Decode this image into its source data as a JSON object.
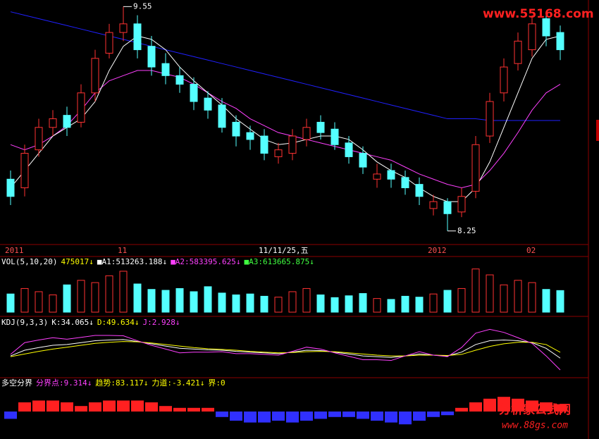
{
  "chart_data": [
    {
      "type": "candlestick",
      "categories": [
        "2011",
        null,
        null,
        null,
        null,
        null,
        null,
        null,
        "11",
        null,
        null,
        null,
        null,
        null,
        null,
        null,
        null,
        null,
        "11/11/25,五",
        null,
        null,
        null,
        null,
        null,
        null,
        null,
        null,
        null,
        null,
        null,
        "2012",
        null,
        null,
        null,
        null,
        null,
        null,
        "02",
        null,
        null
      ],
      "open": [
        8.55,
        8.5,
        8.72,
        8.85,
        8.92,
        8.88,
        9.05,
        9.28,
        9.4,
        9.45,
        9.32,
        9.22,
        9.15,
        9.1,
        9.02,
        8.98,
        8.88,
        8.82,
        8.8,
        8.68,
        8.7,
        8.78,
        8.88,
        8.84,
        8.76,
        8.7,
        8.55,
        8.6,
        8.56,
        8.52,
        8.38,
        8.42,
        8.36,
        8.48,
        8.8,
        9.05,
        9.22,
        9.3,
        9.48,
        9.4
      ],
      "high": [
        8.6,
        8.75,
        8.9,
        8.95,
        8.97,
        9.1,
        9.3,
        9.45,
        9.55,
        9.5,
        9.38,
        9.28,
        9.2,
        9.14,
        9.06,
        9.02,
        8.92,
        8.86,
        8.84,
        8.76,
        8.84,
        8.9,
        8.92,
        8.88,
        8.8,
        8.74,
        8.64,
        8.64,
        8.6,
        8.56,
        8.46,
        8.44,
        8.5,
        8.8,
        9.05,
        9.25,
        9.4,
        9.5,
        9.52,
        9.44
      ],
      "low": [
        8.4,
        8.45,
        8.68,
        8.8,
        8.8,
        8.85,
        9.0,
        9.25,
        9.35,
        9.25,
        9.15,
        9.1,
        9.05,
        8.95,
        8.9,
        8.82,
        8.74,
        8.72,
        8.66,
        8.64,
        8.66,
        8.74,
        8.78,
        8.72,
        8.64,
        8.58,
        8.5,
        8.5,
        8.46,
        8.4,
        8.34,
        8.25,
        8.33,
        8.44,
        8.76,
        9.0,
        9.18,
        9.26,
        9.32,
        9.24
      ],
      "close": [
        8.45,
        8.7,
        8.85,
        8.9,
        8.85,
        9.05,
        9.25,
        9.4,
        9.45,
        9.3,
        9.2,
        9.15,
        9.1,
        9.0,
        8.95,
        8.85,
        8.8,
        8.78,
        8.7,
        8.72,
        8.8,
        8.85,
        8.82,
        8.75,
        8.68,
        8.62,
        8.58,
        8.55,
        8.5,
        8.45,
        8.42,
        8.35,
        8.45,
        8.75,
        9.0,
        9.2,
        9.35,
        9.45,
        9.38,
        9.3
      ],
      "up_color": "#ff3232",
      "down_color": "#54ffff",
      "series": [
        {
          "color": "#2020ff",
          "values": [
            9.52,
            9.5,
            9.48,
            9.46,
            9.44,
            9.42,
            9.4,
            9.38,
            9.36,
            9.34,
            9.32,
            9.3,
            9.28,
            9.26,
            9.24,
            9.22,
            9.2,
            9.18,
            9.16,
            9.14,
            9.12,
            9.1,
            9.08,
            9.06,
            9.04,
            9.02,
            9.0,
            8.98,
            8.96,
            8.94,
            8.92,
            8.9,
            8.9,
            8.9,
            8.89,
            8.89,
            8.89,
            8.89,
            8.89,
            8.89
          ]
        },
        {
          "color": "#ff40ff",
          "values": [
            8.75,
            8.72,
            8.75,
            8.8,
            8.86,
            8.95,
            9.05,
            9.12,
            9.15,
            9.18,
            9.18,
            9.16,
            9.14,
            9.1,
            9.05,
            9.0,
            8.96,
            8.9,
            8.86,
            8.82,
            8.8,
            8.78,
            8.76,
            8.74,
            8.72,
            8.7,
            8.68,
            8.66,
            8.62,
            8.58,
            8.55,
            8.52,
            8.5,
            8.52,
            8.6,
            8.7,
            8.82,
            8.95,
            9.05,
            9.1
          ]
        },
        {
          "color": "#ffffff",
          "values": [
            8.5,
            8.6,
            8.7,
            8.8,
            8.85,
            8.9,
            9.0,
            9.18,
            9.32,
            9.38,
            9.36,
            9.3,
            9.2,
            9.12,
            9.05,
            8.98,
            8.9,
            8.84,
            8.78,
            8.75,
            8.76,
            8.78,
            8.8,
            8.8,
            8.78,
            8.72,
            8.65,
            8.6,
            8.56,
            8.5,
            8.45,
            8.42,
            8.42,
            8.5,
            8.65,
            8.85,
            9.05,
            9.25,
            9.36,
            9.38
          ]
        }
      ],
      "annotations": [
        {
          "label": "9.55",
          "value": 9.55
        },
        {
          "label": "8.25",
          "value": 8.25
        }
      ],
      "ylim": [
        8.2,
        9.58
      ],
      "watermark": "www.55168.com"
    },
    {
      "type": "volume",
      "header": [
        "VOL(5,10,20)",
        "475017↓",
        "■A1:513263.188↓",
        "■A2:583395.625↓",
        "■A3:613665.875↓"
      ],
      "values": [
        400000,
        520000,
        450000,
        380000,
        600000,
        700000,
        650000,
        800000,
        900000,
        620000,
        500000,
        480000,
        520000,
        450000,
        560000,
        420000,
        380000,
        400000,
        350000,
        330000,
        450000,
        520000,
        380000,
        320000,
        360000,
        410000,
        300000,
        280000,
        350000,
        330000,
        400000,
        480000,
        520000,
        950000,
        820000,
        600000,
        700000,
        650000,
        500000,
        475017
      ],
      "ylim": [
        0,
        1100000
      ]
    },
    {
      "type": "line",
      "header": [
        "KDJ(9,3,3)",
        "K:34.065↓",
        "D:49.634↓",
        "J:2.928↓"
      ],
      "series": [
        {
          "color": "#ffffff",
          "values": [
            40,
            55,
            62,
            68,
            70,
            75,
            80,
            82,
            83,
            78,
            72,
            66,
            60,
            58,
            56,
            55,
            52,
            50,
            48,
            46,
            50,
            55,
            54,
            50,
            45,
            40,
            38,
            36,
            40,
            45,
            42,
            40,
            50,
            70,
            80,
            82,
            80,
            75,
            60,
            34.065
          ]
        },
        {
          "color": "#ffff00",
          "values": [
            38,
            45,
            52,
            58,
            63,
            68,
            73,
            76,
            78,
            77,
            74,
            70,
            66,
            62,
            59,
            57,
            55,
            52,
            50,
            48,
            49,
            51,
            52,
            51,
            48,
            45,
            42,
            40,
            40,
            42,
            42,
            41,
            44,
            55,
            65,
            72,
            76,
            76,
            70,
            49.634
          ]
        },
        {
          "color": "#ff40ff",
          "values": [
            44,
            75,
            82,
            88,
            84,
            89,
            94,
            94,
            93,
            80,
            68,
            58,
            48,
            50,
            50,
            51,
            46,
            46,
            44,
            42,
            52,
            63,
            58,
            48,
            39,
            30,
            30,
            28,
            40,
            51,
            42,
            38,
            62,
            100,
            110,
            102,
            88,
            73,
            40,
            2.928
          ]
        }
      ],
      "ylim": [
        -10,
        120
      ]
    },
    {
      "type": "histogram",
      "header": [
        "多空分界",
        "分界点:9.314↓",
        "趋势:83.117↓",
        "力道:-3.421↓",
        "界:0"
      ],
      "values": [
        -8,
        10,
        12,
        12,
        10,
        6,
        10,
        12,
        12,
        12,
        10,
        6,
        4,
        4,
        4,
        -6,
        -10,
        -12,
        -12,
        -10,
        -12,
        -10,
        -8,
        -6,
        -6,
        -8,
        -10,
        -12,
        -14,
        -10,
        -6,
        -4,
        4,
        10,
        14,
        16,
        14,
        12,
        10,
        8
      ],
      "pos_color": "#ff2020",
      "neg_color": "#3030ff",
      "ylim": [
        -30,
        30
      ],
      "watermark": [
        "分析家公式网",
        "www.88gs.com"
      ]
    }
  ]
}
